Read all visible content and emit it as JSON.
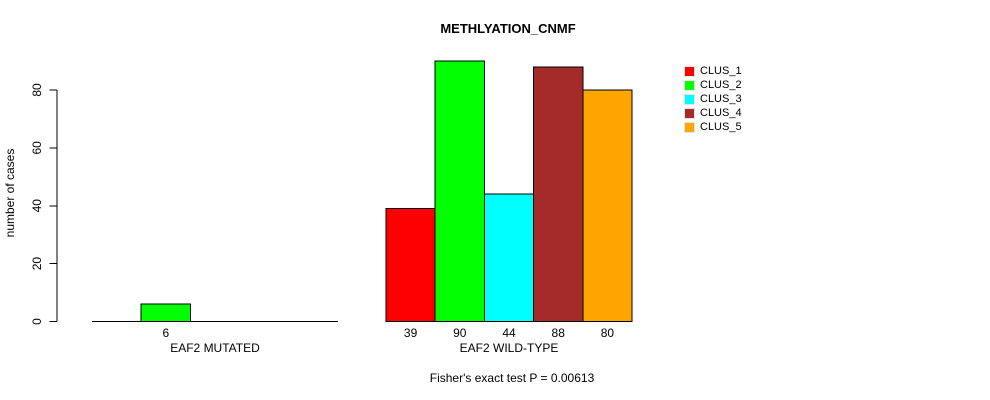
{
  "chart_data": {
    "type": "bar",
    "title": "METHLYATION_CNMF",
    "ylabel": "number of cases",
    "xlabel": "",
    "annotation": "Fisher's exact test P = 0.00613",
    "ylim": [
      0,
      90
    ],
    "y_ticks": [
      0,
      20,
      40,
      60,
      80
    ],
    "grid": false,
    "legend_position": "top-right",
    "value_labels": "shown under each nonzero bar",
    "categories": [
      "EAF2 MUTATED",
      "EAF2 WILD-TYPE"
    ],
    "series": [
      {
        "name": "CLUS_1",
        "color": "#ff0000",
        "values": [
          0,
          39
        ]
      },
      {
        "name": "CLUS_2",
        "color": "#00ff00",
        "values": [
          6,
          90
        ]
      },
      {
        "name": "CLUS_3",
        "color": "#00ffff",
        "values": [
          0,
          44
        ]
      },
      {
        "name": "CLUS_4",
        "color": "#a52a2a",
        "values": [
          0,
          88
        ]
      },
      {
        "name": "CLUS_5",
        "color": "#ffa500",
        "values": [
          0,
          80
        ]
      }
    ]
  },
  "colors": {
    "axis": "#000000",
    "text": "#000000",
    "background": "#ffffff"
  }
}
